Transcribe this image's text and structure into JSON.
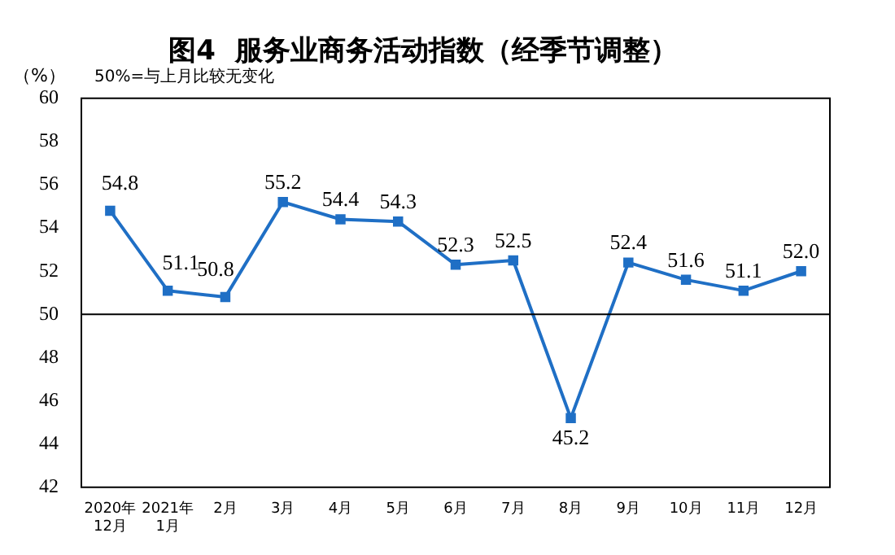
{
  "chart_data": {
    "type": "line",
    "title": "图4  服务业商务活动指数（经季节调整）",
    "ylabel": "（%）",
    "annotations": [
      "50%=与上月比较无变化"
    ],
    "categories": [
      "2020年\n12月",
      "2021年\n1月",
      "2月",
      "3月",
      "4月",
      "5月",
      "6月",
      "7月",
      "8月",
      "9月",
      "10月",
      "11月",
      "12月"
    ],
    "series": [
      {
        "color": "#1f6fc5",
        "values": [
          54.8,
          51.1,
          50.8,
          55.2,
          54.4,
          54.3,
          52.3,
          52.5,
          45.2,
          52.4,
          51.6,
          51.1,
          52.0
        ],
        "value_labels": [
          "54.8",
          "51.1",
          "50.8",
          "55.2",
          "54.4",
          "54.3",
          "52.3",
          "52.5",
          "45.2",
          "52.4",
          "51.6",
          "51.1",
          "52.0"
        ]
      }
    ],
    "ylim": [
      42,
      60
    ],
    "yticks": [
      42,
      44,
      46,
      48,
      50,
      52,
      54,
      56,
      58,
      60
    ],
    "ref_lines": [
      {
        "axis": "y",
        "value": 50,
        "color": "#000000"
      }
    ],
    "marker": "square",
    "line_style": "solid",
    "grid": false,
    "legend": false
  }
}
